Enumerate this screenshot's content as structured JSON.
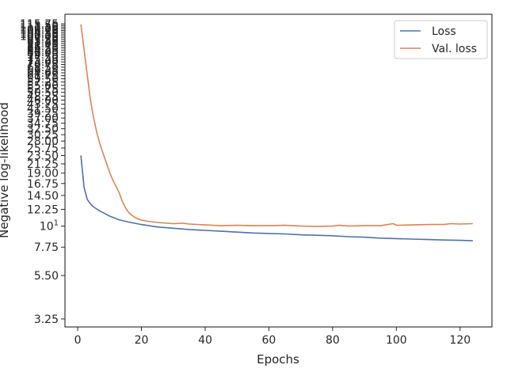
{
  "chart_data": {
    "type": "line",
    "xlabel": "Epochs",
    "ylabel": "Negative log-likelihood",
    "xlim": [
      -4,
      130
    ],
    "ylim": [
      2.95,
      130
    ],
    "yscale": "log",
    "grid": false,
    "legend_position": "upper right",
    "x_ticks": [
      0,
      20,
      40,
      60,
      80,
      100,
      120
    ],
    "y_ticks": [
      "3.25",
      "5.50",
      "7.75",
      "10^1",
      "12.25",
      "14.50",
      "16.75",
      "19.00",
      "21.25",
      "23.50",
      "25.75",
      "28.00",
      "30.25",
      "32.50",
      "34.75",
      "37.00",
      "39.25",
      "41.50",
      "43.75",
      "46.00",
      "48.25",
      "50.50",
      "52.75",
      "55.00",
      "57.25",
      "59.50",
      "61.75",
      "64.00",
      "66.25",
      "68.50",
      "70.75",
      "73.00",
      "75.25",
      "77.50",
      "79.75",
      "82.00",
      "84.25",
      "86.50",
      "88.75",
      "91.00",
      "93.25",
      "95.50",
      "97.75",
      "100.00",
      "102.25",
      "104.50",
      "106.75",
      "109.00",
      "111.25",
      "113.50",
      "115.75"
    ],
    "series": [
      {
        "name": "Loss",
        "color": "#4c72b0",
        "points": [
          [
            1,
            23.5
          ],
          [
            2,
            16.0
          ],
          [
            3,
            13.8
          ],
          [
            4,
            13.1
          ],
          [
            5,
            12.6
          ],
          [
            7,
            12.0
          ],
          [
            10,
            11.3
          ],
          [
            13,
            10.8
          ],
          [
            16,
            10.5
          ],
          [
            20,
            10.2
          ],
          [
            25,
            9.9
          ],
          [
            30,
            9.75
          ],
          [
            35,
            9.6
          ],
          [
            40,
            9.5
          ],
          [
            45,
            9.4
          ],
          [
            50,
            9.3
          ],
          [
            55,
            9.2
          ],
          [
            60,
            9.15
          ],
          [
            65,
            9.1
          ],
          [
            70,
            9.0
          ],
          [
            75,
            8.95
          ],
          [
            80,
            8.9
          ],
          [
            85,
            8.8
          ],
          [
            90,
            8.75
          ],
          [
            95,
            8.65
          ],
          [
            100,
            8.6
          ],
          [
            105,
            8.55
          ],
          [
            110,
            8.5
          ],
          [
            115,
            8.45
          ],
          [
            120,
            8.42
          ],
          [
            124,
            8.38
          ]
        ]
      },
      {
        "name": "Val. loss",
        "color": "#dd8452",
        "points": [
          [
            1,
            115.0
          ],
          [
            2,
            85.0
          ],
          [
            3,
            62.0
          ],
          [
            4,
            46.0
          ],
          [
            5,
            37.0
          ],
          [
            6,
            31.0
          ],
          [
            7,
            27.0
          ],
          [
            8,
            24.0
          ],
          [
            9,
            21.5
          ],
          [
            10,
            19.2
          ],
          [
            11,
            17.5
          ],
          [
            12,
            16.2
          ],
          [
            13,
            15.0
          ],
          [
            14,
            13.5
          ],
          [
            15,
            12.5
          ],
          [
            16,
            11.8
          ],
          [
            17,
            11.4
          ],
          [
            18,
            11.1
          ],
          [
            19,
            10.9
          ],
          [
            20,
            10.75
          ],
          [
            22,
            10.6
          ],
          [
            25,
            10.45
          ],
          [
            30,
            10.3
          ],
          [
            33,
            10.35
          ],
          [
            35,
            10.25
          ],
          [
            40,
            10.15
          ],
          [
            45,
            10.05
          ],
          [
            50,
            10.1
          ],
          [
            55,
            10.05
          ],
          [
            60,
            10.05
          ],
          [
            65,
            10.1
          ],
          [
            70,
            10.0
          ],
          [
            75,
            9.95
          ],
          [
            80,
            10.0
          ],
          [
            82,
            10.1
          ],
          [
            85,
            10.0
          ],
          [
            90,
            10.05
          ],
          [
            95,
            10.05
          ],
          [
            99,
            10.3
          ],
          [
            100,
            10.1
          ],
          [
            105,
            10.15
          ],
          [
            110,
            10.2
          ],
          [
            115,
            10.2
          ],
          [
            117,
            10.3
          ],
          [
            120,
            10.25
          ],
          [
            124,
            10.3
          ]
        ]
      }
    ]
  }
}
